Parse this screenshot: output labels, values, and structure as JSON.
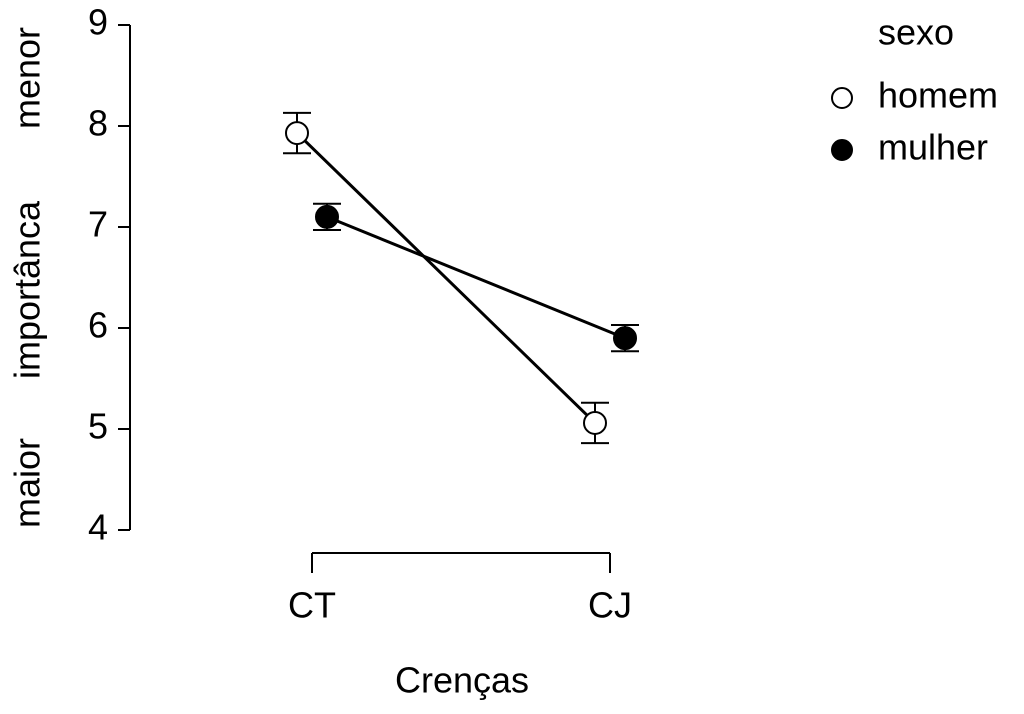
{
  "chart_data": {
    "type": "line",
    "categories": [
      "CT",
      "CJ"
    ],
    "series": [
      {
        "name": "homem",
        "color": "#ffffff",
        "values": [
          7.93,
          5.06
        ],
        "errors": [
          0.2,
          0.2
        ]
      },
      {
        "name": "mulher",
        "color": "#000000",
        "values": [
          7.1,
          5.9
        ],
        "errors": [
          0.13,
          0.13
        ]
      }
    ],
    "ylim": [
      4,
      9
    ],
    "yticks": [
      4,
      5,
      6,
      7,
      8,
      9
    ],
    "xlabel": "Crenças",
    "ylabel_low": "maior",
    "ylabel_mid": "importânca",
    "ylabel_high": "menor",
    "legend_title": "sexo",
    "legend_position": "top-right"
  }
}
